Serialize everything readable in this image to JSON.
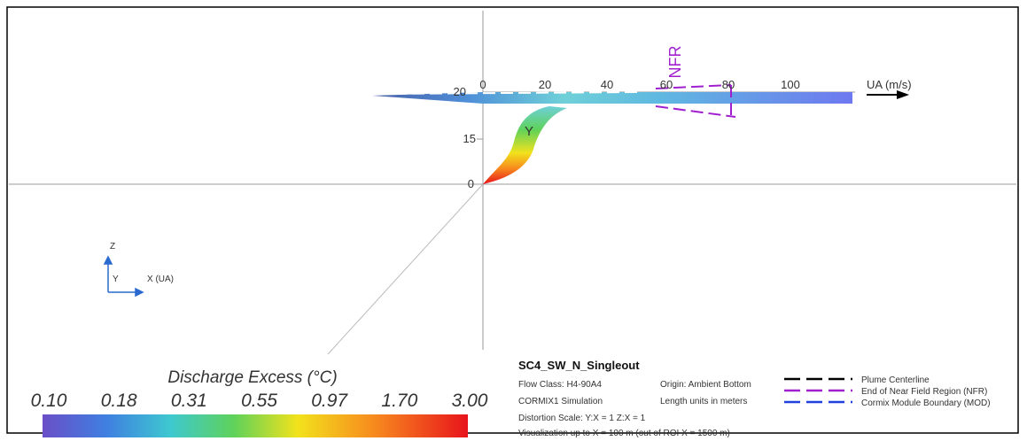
{
  "view": {
    "x_axis": {
      "ticks": [
        "0",
        "20",
        "40",
        "60",
        "80",
        "100"
      ],
      "label": "UA (m/s)"
    },
    "z_axis": {
      "ticks": [
        "20",
        "15",
        "0"
      ]
    },
    "nfr_label": "NFR",
    "plume_label": "Y",
    "orientation": {
      "z": "Z",
      "y": "Y",
      "x": "X (UA)"
    }
  },
  "colorbar": {
    "title": "Discharge Excess  (°C)",
    "labels": [
      "0.10",
      "0.18",
      "0.31",
      "0.55",
      "0.97",
      "1.70",
      "3.00"
    ]
  },
  "info": {
    "title": "SC4_SW_N_Singleout",
    "rows": [
      [
        "Flow Class:  H4-90A4",
        "Origin:  Ambient Bottom"
      ],
      [
        "CORMIX1 Simulation",
        "Length units in meters"
      ],
      [
        "Distortion Scale:  Y:X = 1    Z:X = 1"
      ],
      [
        "Visualization up to X = 100 m (out of ROI X = 1500 m)"
      ]
    ]
  },
  "legend": [
    "Plume Centerline",
    "End of Near Field Region (NFR)",
    "Cormix Module Boundary (MOD)"
  ]
}
